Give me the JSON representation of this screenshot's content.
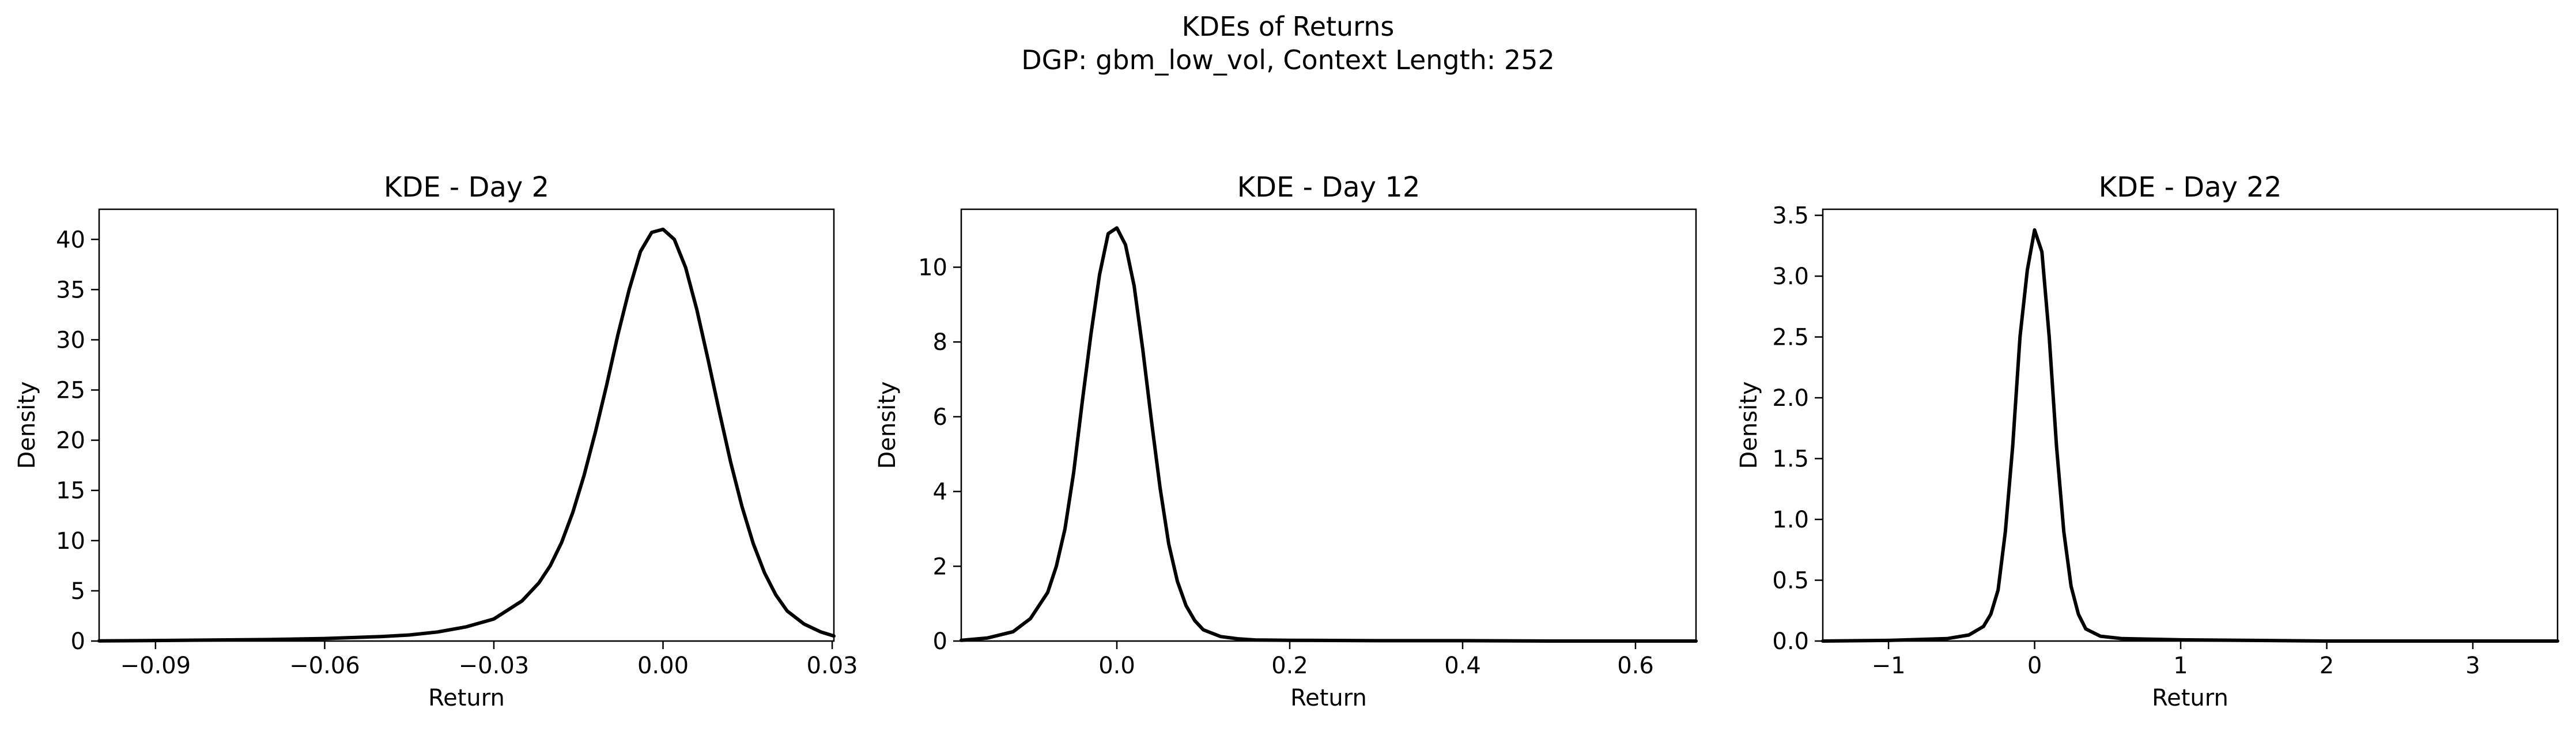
{
  "figure": {
    "title_line1": "KDEs of Returns",
    "title_line2": "DGP: gbm_low_vol, Context Length: 252"
  },
  "colors": {
    "line": "#000000",
    "axes": "#000000",
    "background": "#ffffff"
  },
  "chart_data": [
    {
      "type": "line",
      "title": "KDE - Day 2",
      "xlabel": "Return",
      "ylabel": "Density",
      "xlim": [
        -0.1,
        0.0303
      ],
      "ylim": [
        0,
        43
      ],
      "xticks": [
        -0.09,
        -0.06,
        -0.03,
        0.0,
        0.03
      ],
      "xtick_labels": [
        "−0.09",
        "−0.06",
        "−0.03",
        "0.00",
        "0.03"
      ],
      "yticks": [
        0,
        5,
        10,
        15,
        20,
        25,
        30,
        35,
        40
      ],
      "ytick_labels": [
        "0",
        "5",
        "10",
        "15",
        "20",
        "25",
        "30",
        "35",
        "40"
      ],
      "grid": false,
      "series": [
        {
          "x": [
            -0.1,
            -0.09,
            -0.08,
            -0.07,
            -0.06,
            -0.05,
            -0.045,
            -0.04,
            -0.035,
            -0.03,
            -0.025,
            -0.022,
            -0.02,
            -0.018,
            -0.016,
            -0.014,
            -0.012,
            -0.01,
            -0.008,
            -0.006,
            -0.004,
            -0.002,
            0.0,
            0.002,
            0.004,
            0.006,
            0.008,
            0.01,
            0.012,
            0.014,
            0.016,
            0.018,
            0.02,
            0.022,
            0.025,
            0.028,
            0.0303
          ],
          "y": [
            0.02,
            0.05,
            0.1,
            0.15,
            0.25,
            0.45,
            0.6,
            0.9,
            1.4,
            2.2,
            4.0,
            5.8,
            7.5,
            9.8,
            12.8,
            16.5,
            20.8,
            25.5,
            30.5,
            35.0,
            38.8,
            40.7,
            41.0,
            40.0,
            37.2,
            33.0,
            28.0,
            22.8,
            17.8,
            13.4,
            9.7,
            6.8,
            4.6,
            3.0,
            1.7,
            0.9,
            0.5
          ]
        }
      ]
    },
    {
      "type": "line",
      "title": "KDE - Day 12",
      "xlabel": "Return",
      "ylabel": "Density",
      "xlim": [
        -0.18,
        0.67
      ],
      "ylim": [
        0,
        11.55
      ],
      "xticks": [
        0.0,
        0.2,
        0.4,
        0.6
      ],
      "xtick_labels": [
        "0.0",
        "0.2",
        "0.4",
        "0.6"
      ],
      "yticks": [
        0,
        2,
        4,
        6,
        8,
        10
      ],
      "ytick_labels": [
        "0",
        "2",
        "4",
        "6",
        "8",
        "10"
      ],
      "grid": false,
      "series": [
        {
          "x": [
            -0.18,
            -0.15,
            -0.12,
            -0.1,
            -0.08,
            -0.07,
            -0.06,
            -0.05,
            -0.04,
            -0.03,
            -0.02,
            -0.01,
            0.0,
            0.01,
            0.02,
            0.03,
            0.04,
            0.05,
            0.06,
            0.07,
            0.08,
            0.09,
            0.1,
            0.12,
            0.14,
            0.16,
            0.2,
            0.3,
            0.4,
            0.5,
            0.6,
            0.67
          ],
          "y": [
            0.02,
            0.08,
            0.25,
            0.6,
            1.3,
            2.0,
            3.0,
            4.5,
            6.4,
            8.2,
            9.8,
            10.9,
            11.05,
            10.6,
            9.5,
            7.8,
            5.9,
            4.1,
            2.6,
            1.6,
            0.95,
            0.55,
            0.3,
            0.12,
            0.06,
            0.03,
            0.02,
            0.01,
            0.01,
            0.0,
            0.0,
            0.0
          ]
        }
      ]
    },
    {
      "type": "line",
      "title": "KDE - Day 22",
      "xlabel": "Return",
      "ylabel": "Density",
      "xlim": [
        -1.45,
        3.58
      ],
      "ylim": [
        0,
        3.55
      ],
      "xticks": [
        -1,
        0,
        1,
        2,
        3
      ],
      "xtick_labels": [
        "−1",
        "0",
        "1",
        "2",
        "3"
      ],
      "yticks": [
        0.0,
        0.5,
        1.0,
        1.5,
        2.0,
        2.5,
        3.0,
        3.5
      ],
      "ytick_labels": [
        "0.0",
        "0.5",
        "1.0",
        "1.5",
        "2.0",
        "2.5",
        "3.0",
        "3.5"
      ],
      "grid": false,
      "series": [
        {
          "x": [
            -1.45,
            -1.0,
            -0.6,
            -0.45,
            -0.35,
            -0.3,
            -0.25,
            -0.2,
            -0.15,
            -0.1,
            -0.05,
            0.0,
            0.05,
            0.1,
            0.15,
            0.2,
            0.25,
            0.3,
            0.35,
            0.45,
            0.6,
            1.0,
            2.0,
            3.0,
            3.58
          ],
          "y": [
            0.0,
            0.005,
            0.02,
            0.05,
            0.12,
            0.22,
            0.42,
            0.9,
            1.6,
            2.5,
            3.05,
            3.38,
            3.2,
            2.5,
            1.6,
            0.9,
            0.45,
            0.22,
            0.1,
            0.04,
            0.02,
            0.01,
            0.0,
            0.0,
            0.0
          ]
        }
      ]
    }
  ]
}
